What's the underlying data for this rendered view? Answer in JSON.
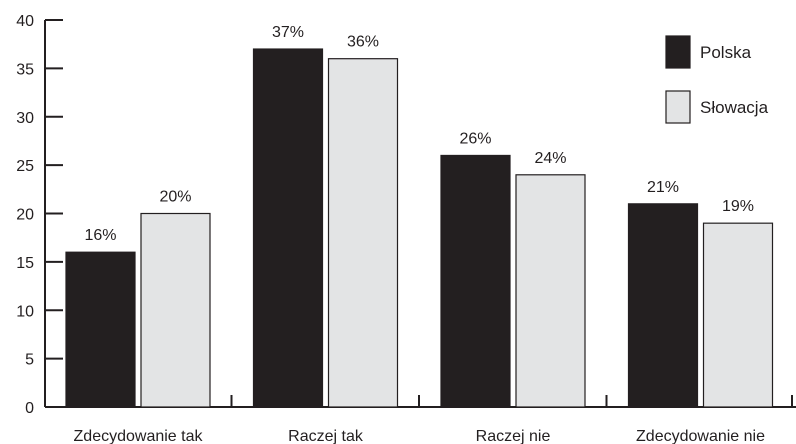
{
  "chart_data": {
    "type": "bar",
    "categories": [
      "Zdecydowanie tak",
      "Raczej tak",
      "Raczej nie",
      "Zdecydowanie nie"
    ],
    "series": [
      {
        "name": "Polska",
        "color": "#231f20",
        "values": [
          16,
          37,
          26,
          21
        ],
        "labels": [
          "16%",
          "37%",
          "26%",
          "21%"
        ]
      },
      {
        "name": "Słowacja",
        "color": "#e3e4e5",
        "values": [
          20,
          36,
          24,
          19
        ],
        "labels": [
          "20%",
          "36%",
          "24%",
          "19%"
        ]
      }
    ],
    "ylim": [
      0,
      40
    ],
    "yticks": [
      0,
      5,
      10,
      15,
      20,
      25,
      30,
      35,
      40
    ],
    "title": "",
    "xlabel": "",
    "ylabel": "",
    "grid": false,
    "legend": "top-right"
  }
}
